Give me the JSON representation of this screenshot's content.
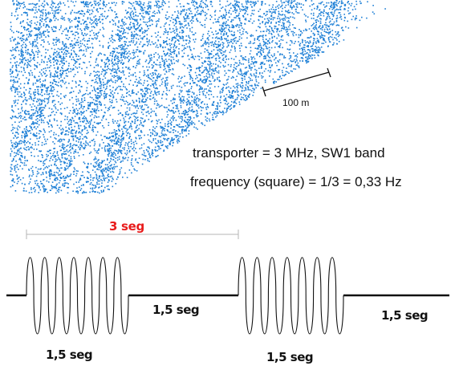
{
  "figure": {
    "point_color": "#1f80d6",
    "scale_bar": {
      "label": "100 m"
    },
    "caption": {
      "line1": "transporter = 3 MHz, SW1 band",
      "line2": "frequency (square) = 1/3 = 0,33 Hz"
    },
    "waveform": {
      "period_label": "3 seg",
      "period_color": "#e81c1c",
      "signal_color": "#111111",
      "bursts": [
        {
          "on_label": "1,5 seg",
          "off_label": "1,5 seg"
        },
        {
          "on_label": "1,5 seg",
          "off_label": "1,5 seg"
        }
      ]
    }
  }
}
